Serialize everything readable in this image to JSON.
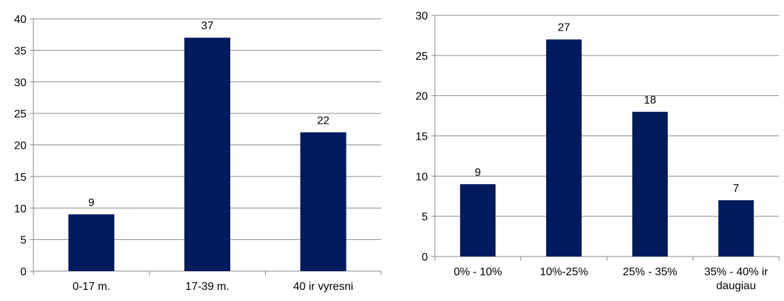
{
  "chart_data": [
    {
      "type": "bar",
      "categories": [
        "0-17 m.",
        "17-39 m.",
        "40 ir vyresni"
      ],
      "values": [
        9,
        37,
        22
      ],
      "data_labels": [
        "9",
        "37",
        "22"
      ],
      "ylim": [
        0,
        40
      ],
      "yticks": [
        0,
        5,
        10,
        15,
        20,
        25,
        30,
        35,
        40
      ],
      "grid": true,
      "bar_color": "#001a5e"
    },
    {
      "type": "bar",
      "categories": [
        "0% - 10%",
        "10%-25%",
        "25% - 35%",
        "35% - 40% ir daugiau"
      ],
      "values": [
        9,
        27,
        18,
        7
      ],
      "data_labels": [
        "9",
        "27",
        "18",
        "7"
      ],
      "ylim": [
        0,
        30
      ],
      "yticks": [
        0,
        5,
        10,
        15,
        20,
        25,
        30
      ],
      "grid": true,
      "bar_color": "#001a5e"
    }
  ]
}
